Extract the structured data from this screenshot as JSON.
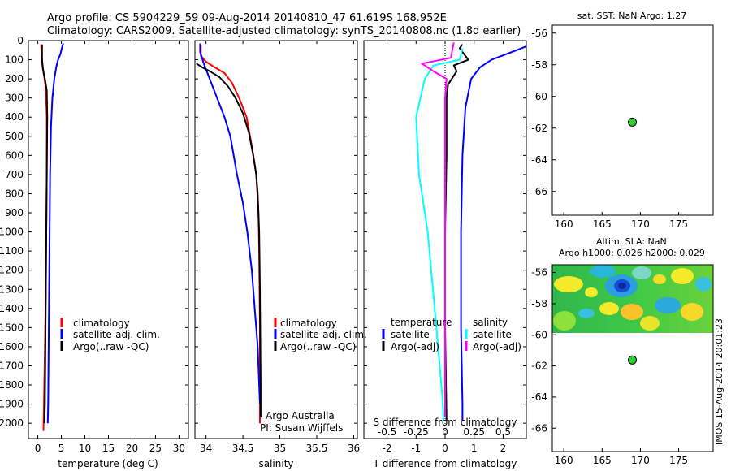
{
  "header": {
    "title_line1": "Argo profile: CS 5904229_59 09-Aug-2014 20140810_47 61.619S 168.952E",
    "title_line2": "Climatology: CARS2009. Satellite-adjusted climatology: synTS_20140808.nc (1.8d earlier)"
  },
  "colors": {
    "climatology": "#ff0000",
    "satellite": "#0000ff",
    "argo": "#000000",
    "satellite_s": "#00ffff",
    "argo_s": "#ff00ff",
    "float_marker": "#33cc33"
  },
  "depth_ticks": [
    "0",
    "100",
    "200",
    "300",
    "400",
    "500",
    "600",
    "700",
    "800",
    "900",
    "1000",
    "1100",
    "1200",
    "1300",
    "1400",
    "1500",
    "1600",
    "1700",
    "1800",
    "1900",
    "2000"
  ],
  "chart_data": [
    {
      "type": "line",
      "xlabel": "temperature (deg C)",
      "xlim": [
        -2,
        32
      ],
      "ylim": [
        2080,
        0
      ],
      "xticks": [
        "0",
        "5",
        "10",
        "15",
        "20",
        "25",
        "30"
      ],
      "legend": [
        "climatology",
        "satellite-adj. clim.",
        "Argo(..raw -QC)"
      ],
      "series": [
        {
          "name": "climatology",
          "color": "#ff0000",
          "points": [
            [
              0.7,
              20
            ],
            [
              0.8,
              60
            ],
            [
              0.9,
              100
            ],
            [
              1.0,
              140
            ],
            [
              1.3,
              180
            ],
            [
              1.7,
              250
            ],
            [
              1.9,
              400
            ],
            [
              1.9,
              700
            ],
            [
              1.8,
              1000
            ],
            [
              1.7,
              1300
            ],
            [
              1.5,
              1600
            ],
            [
              1.3,
              1900
            ],
            [
              1.2,
              2040
            ]
          ]
        },
        {
          "name": "satellite-adj. clim.",
          "color": "#0000ff",
          "points": [
            [
              5.4,
              15
            ],
            [
              5.1,
              40
            ],
            [
              4.8,
              70
            ],
            [
              4.3,
              100
            ],
            [
              3.9,
              140
            ],
            [
              3.5,
              200
            ],
            [
              3.1,
              300
            ],
            [
              2.8,
              450
            ],
            [
              2.6,
              700
            ],
            [
              2.5,
              1000
            ],
            [
              2.4,
              1300
            ],
            [
              2.3,
              1600
            ],
            [
              2.2,
              1900
            ],
            [
              2.1,
              2000
            ]
          ]
        },
        {
          "name": "Argo(..raw -QC)",
          "color": "#000000",
          "points": [
            [
              0.9,
              20
            ],
            [
              0.9,
              100
            ],
            [
              1.1,
              150
            ],
            [
              1.5,
              200
            ],
            [
              1.9,
              260
            ],
            [
              2.0,
              400
            ],
            [
              1.9,
              700
            ],
            [
              1.8,
              1000
            ],
            [
              1.7,
              1300
            ],
            [
              1.6,
              1600
            ],
            [
              1.5,
              1900
            ],
            [
              1.4,
              2000
            ]
          ]
        }
      ]
    },
    {
      "type": "line",
      "xlabel": "salinity",
      "xlim": [
        33.85,
        36.05
      ],
      "ylim": [
        2080,
        0
      ],
      "xticks": [
        "34",
        "34.5",
        "35",
        "35.5",
        "36"
      ],
      "legend": [
        "climatology",
        "satellite-adj. clim.",
        "Argo(..raw -QC)"
      ],
      "annotations": [
        "Argo Australia",
        "PI: Susan Wijffels"
      ],
      "series": [
        {
          "name": "climatology",
          "color": "#ff0000",
          "points": [
            [
              33.93,
              20
            ],
            [
              33.93,
              80
            ],
            [
              34.0,
              110
            ],
            [
              34.12,
              140
            ],
            [
              34.25,
              170
            ],
            [
              34.35,
              220
            ],
            [
              34.45,
              300
            ],
            [
              34.55,
              400
            ],
            [
              34.62,
              550
            ],
            [
              34.68,
              700
            ],
            [
              34.71,
              900
            ],
            [
              34.72,
              1100
            ],
            [
              34.73,
              1500
            ],
            [
              34.73,
              2000
            ]
          ]
        },
        {
          "name": "satellite-adj. clim.",
          "color": "#0000ff",
          "points": [
            [
              33.92,
              15
            ],
            [
              33.92,
              60
            ],
            [
              33.97,
              120
            ],
            [
              34.05,
              200
            ],
            [
              34.15,
              300
            ],
            [
              34.25,
              400
            ],
            [
              34.33,
              500
            ],
            [
              34.42,
              700
            ],
            [
              34.5,
              850
            ],
            [
              34.56,
              1000
            ],
            [
              34.62,
              1200
            ],
            [
              34.66,
              1400
            ],
            [
              34.7,
              1600
            ],
            [
              34.72,
              1800
            ],
            [
              34.73,
              1900
            ]
          ]
        },
        {
          "name": "Argo(..raw -QC)",
          "color": "#000000",
          "points": [
            [
              33.87,
              120
            ],
            [
              33.95,
              140
            ],
            [
              34.05,
              160
            ],
            [
              34.18,
              190
            ],
            [
              34.3,
              240
            ],
            [
              34.4,
              300
            ],
            [
              34.5,
              380
            ],
            [
              34.58,
              480
            ],
            [
              34.64,
              600
            ],
            [
              34.68,
              700
            ],
            [
              34.7,
              800
            ],
            [
              34.72,
              1000
            ],
            [
              34.73,
              1300
            ],
            [
              34.74,
              1800
            ],
            [
              34.74,
              1970
            ]
          ]
        }
      ]
    },
    {
      "type": "line",
      "xlabel": "T difference from climatology",
      "secondary_xlabel": "S difference from climatology",
      "xlim": [
        -2.8,
        2.8
      ],
      "ylim": [
        2080,
        0
      ],
      "xticks": [
        "-2",
        "-1",
        "0",
        "1",
        "2"
      ],
      "s_xticks": [
        "-0.5",
        "-0.25",
        "0",
        "0.25",
        "0.5"
      ],
      "legend_temperature": {
        "title": "temperature",
        "items": [
          "satellite",
          "Argo(-adj)"
        ]
      },
      "legend_salinity": {
        "title": "salinity",
        "items": [
          "satellite",
          "Argo(-adj)"
        ]
      },
      "series": [
        {
          "name": "T satellite",
          "color": "#0000ff",
          "points": [
            [
              2.8,
              30
            ],
            [
              2.3,
              60
            ],
            [
              1.6,
              100
            ],
            [
              1.2,
              140
            ],
            [
              0.9,
              200
            ],
            [
              0.7,
              350
            ],
            [
              0.6,
              600
            ],
            [
              0.55,
              1000
            ],
            [
              0.55,
              1500
            ],
            [
              0.6,
              1900
            ],
            [
              0.6,
              1990
            ]
          ]
        },
        {
          "name": "T Argo(-adj)",
          "color": "#000000",
          "points": [
            [
              0.6,
              20
            ],
            [
              0.5,
              40
            ],
            [
              0.8,
              100
            ],
            [
              0.3,
              130
            ],
            [
              0.4,
              160
            ],
            [
              0.1,
              230
            ],
            [
              0.05,
              300
            ],
            [
              0.05,
              600
            ],
            [
              0.0,
              1000
            ],
            [
              0.0,
              1500
            ],
            [
              0.05,
              1990
            ]
          ]
        },
        {
          "name": "S satellite",
          "color": "#00ffff",
          "points": [
            [
              0.6,
              40
            ],
            [
              0.5,
              100
            ],
            [
              -0.4,
              130
            ],
            [
              -0.7,
              200
            ],
            [
              -1.0,
              400
            ],
            [
              -0.9,
              700
            ],
            [
              -0.6,
              1000
            ],
            [
              -0.3,
              1500
            ],
            [
              -0.1,
              1850
            ],
            [
              -0.05,
              1990
            ]
          ]
        },
        {
          "name": "S Argo(-adj)",
          "color": "#ff00ff",
          "points": [
            [
              0.3,
              10
            ],
            [
              0.2,
              90
            ],
            [
              -0.8,
              120
            ],
            [
              -0.4,
              160
            ],
            [
              0.05,
              200
            ],
            [
              0.0,
              300
            ],
            [
              0.0,
              600
            ],
            [
              0.0,
              1000
            ],
            [
              0.0,
              1500
            ],
            [
              0.0,
              1970
            ]
          ]
        }
      ]
    },
    {
      "type": "scatter",
      "title": "sat. SST: NaN Argo: 1.27",
      "xlim": [
        158.5,
        179.5
      ],
      "ylim": [
        -67.5,
        -55.5
      ],
      "xticks": [
        "160",
        "165",
        "170",
        "175"
      ],
      "yticks": [
        "-56",
        "-58",
        "-60",
        "-62",
        "-64",
        "-66"
      ],
      "points": [
        [
          168.95,
          -61.62
        ]
      ]
    },
    {
      "type": "heatmap",
      "title_line1": "Altim. SLA: NaN",
      "title_line2": "Argo h1000: 0.026 h2000: 0.029",
      "xlim": [
        158.5,
        179.5
      ],
      "ylim": [
        -67.5,
        -55.5
      ],
      "xticks": [
        "160",
        "165",
        "170",
        "175"
      ],
      "yticks": [
        "-56",
        "-58",
        "-60",
        "-62",
        "-64",
        "-66"
      ],
      "field_extent": {
        "lon": [
          158.5,
          179.5
        ],
        "lat": [
          -60.0,
          -55.7
        ]
      },
      "points": [
        [
          168.95,
          -61.62
        ]
      ]
    }
  ],
  "footer_stamp": "IMOS 15-Aug-2014 20:01:23"
}
